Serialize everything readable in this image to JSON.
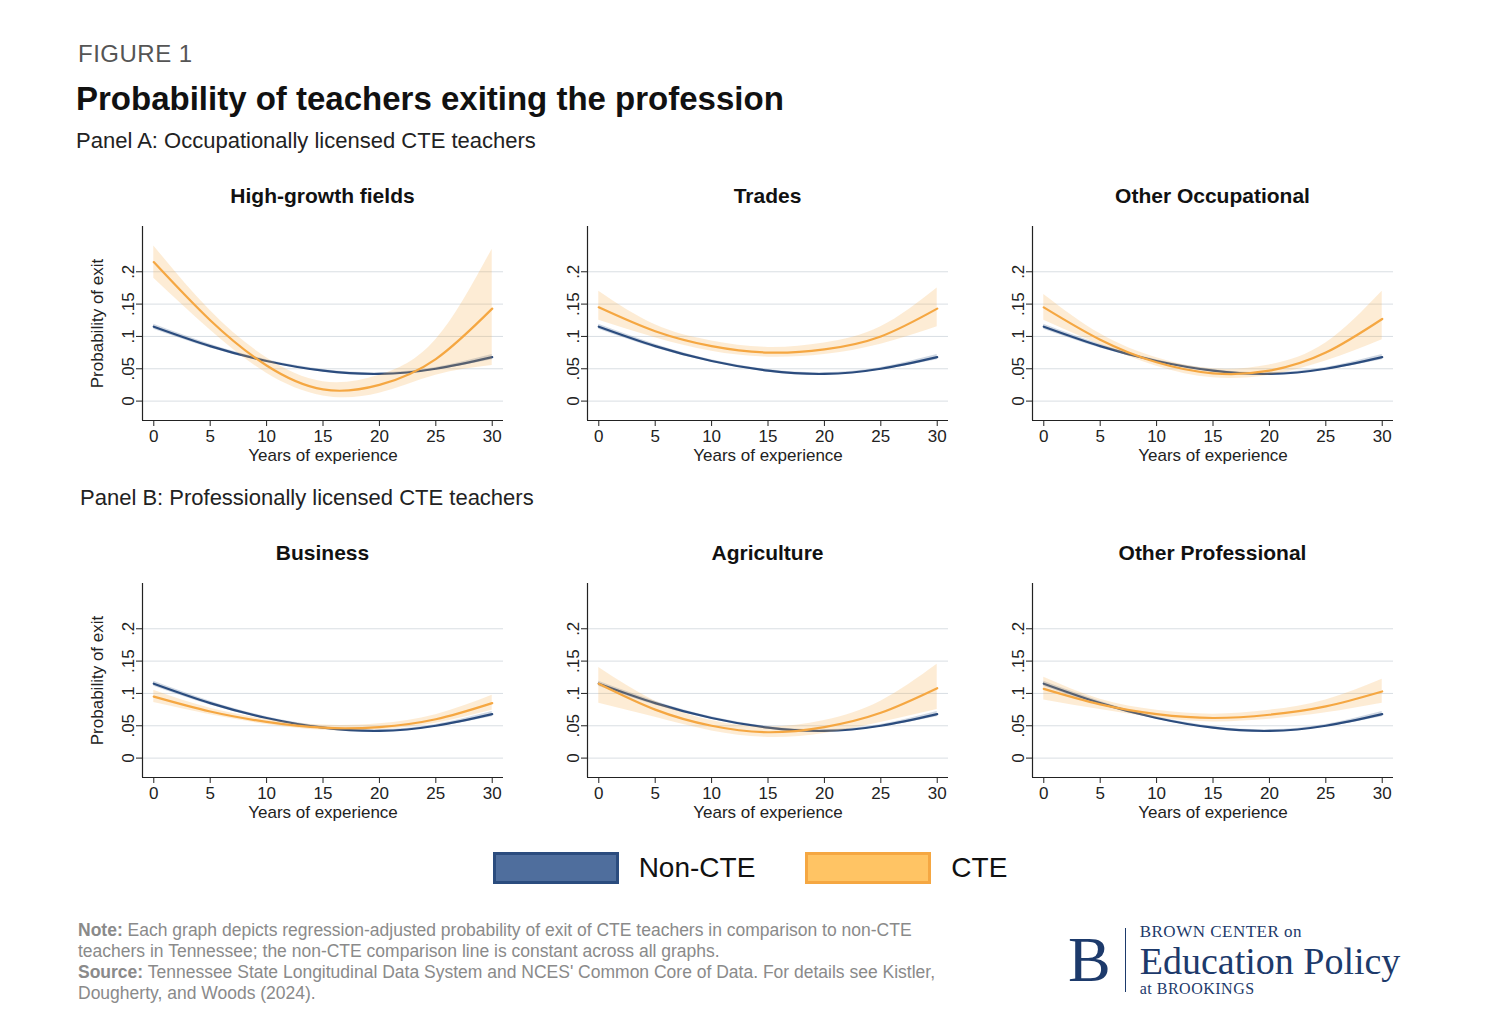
{
  "figure": {
    "label": "FIGURE 1",
    "title": "Probability of teachers exiting the profession",
    "note_label": "Note:",
    "note": "Each graph depicts regression-adjusted probability of exit of CTE teachers in comparison to non-CTE teachers in Tennessee; the non-CTE comparison line is constant across all graphs.",
    "source_label": "Source:",
    "source": "Tennessee State Longitudinal Data System and NCES' Common Core of Data. For details see Kistler, Dougherty, and Woods (2024).",
    "brand": {
      "mark": "B",
      "line1": "BROWN CENTER on",
      "line2": "Education Policy",
      "line3": "at BROOKINGS"
    }
  },
  "chart_data": [
    {
      "type": "line",
      "group": "Panel A: Occupationally licensed CTE teachers",
      "title": "High-growth fields",
      "xlabel": "Years of experience",
      "ylabel": "Probability of exit",
      "x": [
        0,
        5,
        10,
        15,
        20,
        25,
        30
      ],
      "xlim": [
        -1,
        31
      ],
      "xticks": [
        0,
        5,
        10,
        15,
        20,
        25,
        30
      ],
      "ylim": [
        -0.03,
        0.27
      ],
      "yticks": [
        0,
        {
          "value": 0.05,
          "label": ".05"
        },
        {
          "value": 0.1,
          "label": ".1"
        },
        {
          "value": 0.15,
          "label": ".15"
        },
        {
          "value": 0.2,
          "label": ".2"
        }
      ],
      "grid": true,
      "legend": "bottom",
      "series": [
        {
          "name": "Non-CTE",
          "color": "#2b4c7e",
          "values": [
            0.115,
            0.085,
            0.062,
            0.047,
            0.042,
            0.05,
            0.068
          ],
          "ci_lower": [
            0.111,
            0.082,
            0.06,
            0.045,
            0.04,
            0.048,
            0.064
          ],
          "ci_upper": [
            0.119,
            0.088,
            0.064,
            0.049,
            0.044,
            0.052,
            0.072
          ]
        },
        {
          "name": "CTE",
          "color": "#f5a742",
          "values": [
            0.215,
            0.125,
            0.055,
            0.018,
            0.025,
            0.065,
            0.143
          ],
          "ci_lower": [
            0.19,
            0.11,
            0.043,
            0.008,
            0.012,
            0.04,
            0.055
          ],
          "ci_upper": [
            0.24,
            0.14,
            0.067,
            0.03,
            0.04,
            0.095,
            0.235
          ]
        }
      ]
    },
    {
      "type": "line",
      "group": "Panel A: Occupationally licensed CTE teachers",
      "title": "Trades",
      "xlabel": "Years of experience",
      "x": [
        0,
        5,
        10,
        15,
        20,
        25,
        30
      ],
      "xlim": [
        -1,
        31
      ],
      "xticks": [
        0,
        5,
        10,
        15,
        20,
        25,
        30
      ],
      "ylim": [
        -0.03,
        0.27
      ],
      "yticks": [
        0,
        {
          "value": 0.05,
          "label": ".05"
        },
        {
          "value": 0.1,
          "label": ".1"
        },
        {
          "value": 0.15,
          "label": ".15"
        },
        {
          "value": 0.2,
          "label": ".2"
        }
      ],
      "grid": true,
      "legend": "bottom",
      "series": [
        {
          "name": "Non-CTE",
          "color": "#2b4c7e",
          "values": [
            0.115,
            0.085,
            0.062,
            0.047,
            0.042,
            0.05,
            0.068
          ],
          "ci_lower": [
            0.111,
            0.082,
            0.06,
            0.045,
            0.04,
            0.048,
            0.064
          ],
          "ci_upper": [
            0.119,
            0.088,
            0.064,
            0.049,
            0.044,
            0.052,
            0.072
          ]
        },
        {
          "name": "CTE",
          "color": "#f5a742",
          "values": [
            0.145,
            0.108,
            0.085,
            0.075,
            0.08,
            0.1,
            0.143
          ],
          "ci_lower": [
            0.125,
            0.098,
            0.077,
            0.068,
            0.072,
            0.088,
            0.115
          ],
          "ci_upper": [
            0.17,
            0.118,
            0.093,
            0.083,
            0.09,
            0.115,
            0.175
          ]
        }
      ]
    },
    {
      "type": "line",
      "group": "Panel A: Occupationally licensed CTE teachers",
      "title": "Other Occupational",
      "xlabel": "Years of experience",
      "x": [
        0,
        5,
        10,
        15,
        20,
        25,
        30
      ],
      "xlim": [
        -1,
        31
      ],
      "xticks": [
        0,
        5,
        10,
        15,
        20,
        25,
        30
      ],
      "ylim": [
        -0.03,
        0.27
      ],
      "yticks": [
        0,
        {
          "value": 0.05,
          "label": ".05"
        },
        {
          "value": 0.1,
          "label": ".1"
        },
        {
          "value": 0.15,
          "label": ".15"
        },
        {
          "value": 0.2,
          "label": ".2"
        }
      ],
      "grid": true,
      "legend": "bottom",
      "series": [
        {
          "name": "Non-CTE",
          "color": "#2b4c7e",
          "values": [
            0.115,
            0.085,
            0.062,
            0.047,
            0.042,
            0.05,
            0.068
          ],
          "ci_lower": [
            0.111,
            0.082,
            0.06,
            0.045,
            0.04,
            0.048,
            0.064
          ],
          "ci_upper": [
            0.119,
            0.088,
            0.064,
            0.049,
            0.044,
            0.052,
            0.072
          ]
        },
        {
          "name": "CTE",
          "color": "#f5a742",
          "values": [
            0.145,
            0.095,
            0.06,
            0.043,
            0.047,
            0.075,
            0.127
          ],
          "ci_lower": [
            0.125,
            0.087,
            0.054,
            0.036,
            0.04,
            0.062,
            0.095
          ],
          "ci_upper": [
            0.165,
            0.104,
            0.067,
            0.05,
            0.056,
            0.09,
            0.17
          ]
        }
      ]
    },
    {
      "type": "line",
      "group": "Panel B: Professionally licensed CTE teachers",
      "title": "Business",
      "xlabel": "Years of experience",
      "ylabel": "Probability of exit",
      "x": [
        0,
        5,
        10,
        15,
        20,
        25,
        30
      ],
      "xlim": [
        -1,
        31
      ],
      "xticks": [
        0,
        5,
        10,
        15,
        20,
        25,
        30
      ],
      "ylim": [
        -0.03,
        0.27
      ],
      "yticks": [
        0,
        {
          "value": 0.05,
          "label": ".05"
        },
        {
          "value": 0.1,
          "label": ".1"
        },
        {
          "value": 0.15,
          "label": ".15"
        },
        {
          "value": 0.2,
          "label": ".2"
        }
      ],
      "grid": true,
      "legend": "bottom",
      "series": [
        {
          "name": "Non-CTE",
          "color": "#2b4c7e",
          "values": [
            0.115,
            0.085,
            0.062,
            0.047,
            0.042,
            0.05,
            0.068
          ],
          "ci_lower": [
            0.111,
            0.082,
            0.06,
            0.045,
            0.04,
            0.048,
            0.064
          ],
          "ci_upper": [
            0.119,
            0.088,
            0.064,
            0.049,
            0.044,
            0.052,
            0.072
          ]
        },
        {
          "name": "CTE",
          "color": "#f5a742",
          "values": [
            0.095,
            0.072,
            0.056,
            0.047,
            0.048,
            0.06,
            0.085
          ],
          "ci_lower": [
            0.086,
            0.067,
            0.052,
            0.043,
            0.044,
            0.054,
            0.074
          ],
          "ci_upper": [
            0.105,
            0.077,
            0.06,
            0.051,
            0.053,
            0.067,
            0.097
          ]
        }
      ]
    },
    {
      "type": "line",
      "group": "Panel B: Professionally licensed CTE teachers",
      "title": "Agriculture",
      "xlabel": "Years of experience",
      "x": [
        0,
        5,
        10,
        15,
        20,
        25,
        30
      ],
      "xlim": [
        -1,
        31
      ],
      "xticks": [
        0,
        5,
        10,
        15,
        20,
        25,
        30
      ],
      "ylim": [
        -0.03,
        0.27
      ],
      "yticks": [
        0,
        {
          "value": 0.05,
          "label": ".05"
        },
        {
          "value": 0.1,
          "label": ".1"
        },
        {
          "value": 0.15,
          "label": ".15"
        },
        {
          "value": 0.2,
          "label": ".2"
        }
      ],
      "grid": true,
      "legend": "bottom",
      "series": [
        {
          "name": "Non-CTE",
          "color": "#2b4c7e",
          "values": [
            0.115,
            0.085,
            0.062,
            0.047,
            0.042,
            0.05,
            0.068
          ],
          "ci_lower": [
            0.111,
            0.082,
            0.06,
            0.045,
            0.04,
            0.048,
            0.064
          ],
          "ci_upper": [
            0.119,
            0.088,
            0.064,
            0.049,
            0.044,
            0.052,
            0.072
          ]
        },
        {
          "name": "CTE",
          "color": "#f5a742",
          "values": [
            0.115,
            0.075,
            0.05,
            0.04,
            0.048,
            0.07,
            0.108
          ],
          "ci_lower": [
            0.085,
            0.063,
            0.042,
            0.032,
            0.038,
            0.055,
            0.075
          ],
          "ci_upper": [
            0.14,
            0.088,
            0.058,
            0.048,
            0.058,
            0.088,
            0.145
          ]
        }
      ]
    },
    {
      "type": "line",
      "group": "Panel B: Professionally licensed CTE teachers",
      "title": "Other Professional",
      "xlabel": "Years of experience",
      "x": [
        0,
        5,
        10,
        15,
        20,
        25,
        30
      ],
      "xlim": [
        -1,
        31
      ],
      "xticks": [
        0,
        5,
        10,
        15,
        20,
        25,
        30
      ],
      "ylim": [
        -0.03,
        0.27
      ],
      "yticks": [
        0,
        {
          "value": 0.05,
          "label": ".05"
        },
        {
          "value": 0.1,
          "label": ".1"
        },
        {
          "value": 0.15,
          "label": ".15"
        },
        {
          "value": 0.2,
          "label": ".2"
        }
      ],
      "grid": true,
      "legend": "bottom",
      "series": [
        {
          "name": "Non-CTE",
          "color": "#2b4c7e",
          "values": [
            0.115,
            0.085,
            0.062,
            0.047,
            0.042,
            0.05,
            0.068
          ],
          "ci_lower": [
            0.111,
            0.082,
            0.06,
            0.045,
            0.04,
            0.048,
            0.064
          ],
          "ci_upper": [
            0.119,
            0.088,
            0.064,
            0.049,
            0.044,
            0.052,
            0.072
          ]
        },
        {
          "name": "CTE",
          "color": "#f5a742",
          "values": [
            0.107,
            0.083,
            0.068,
            0.062,
            0.067,
            0.08,
            0.103
          ],
          "ci_lower": [
            0.09,
            0.075,
            0.062,
            0.056,
            0.06,
            0.07,
            0.085
          ],
          "ci_upper": [
            0.125,
            0.091,
            0.074,
            0.068,
            0.074,
            0.09,
            0.122
          ]
        }
      ]
    }
  ]
}
